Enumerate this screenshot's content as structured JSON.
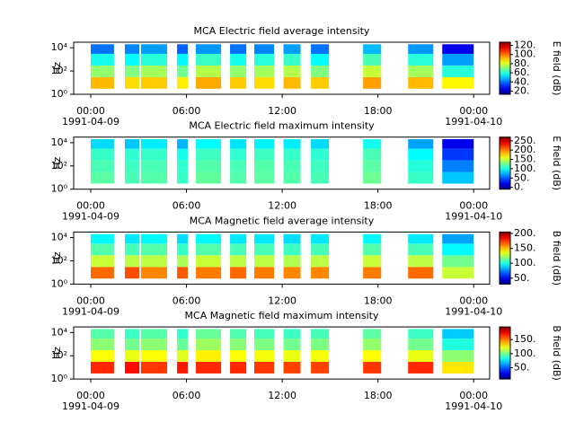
{
  "chart_data": [
    {
      "type": "heatmap",
      "title": "MCA  Electric field average intensity",
      "ylabel": "Hz",
      "colormap": "jet",
      "x_segments": [
        [
          0,
          1.46
        ],
        [
          2.14,
          3.04
        ],
        [
          3.15,
          4.79
        ],
        [
          5.41,
          6.08
        ],
        [
          6.59,
          8.17
        ],
        [
          8.73,
          9.75
        ],
        [
          10.25,
          11.49
        ],
        [
          12.08,
          13.15
        ],
        [
          13.8,
          14.93
        ],
        [
          17.07,
          18.2
        ],
        [
          19.89,
          21.47
        ],
        [
          22.03,
          24.0
        ]
      ],
      "y_bins": [
        3,
        30,
        300,
        3000,
        20000
      ],
      "values": [
        [
          92,
          88,
          90,
          86,
          94,
          90,
          88,
          92,
          90,
          95,
          92,
          85
        ],
        [
          72,
          70,
          74,
          68,
          76,
          72,
          74,
          76,
          70,
          78,
          74,
          60
        ],
        [
          58,
          56,
          60,
          55,
          62,
          58,
          60,
          62,
          56,
          64,
          60,
          45
        ],
        [
          40,
          42,
          45,
          38,
          44,
          40,
          42,
          45,
          40,
          48,
          44,
          25
        ]
      ],
      "xlim": [
        -1.07,
        25.0
      ],
      "xticks": [
        {
          "value": 0,
          "label": "00:00"
        },
        {
          "value": 6,
          "label": "06:00"
        },
        {
          "value": 12,
          "label": "12:00"
        },
        {
          "value": 18,
          "label": "18:00"
        },
        {
          "value": 24,
          "label": "00:00"
        }
      ],
      "xtick_dates": [
        {
          "value": 0,
          "label": "1991-04-09"
        },
        {
          "value": 24,
          "label": "1991-04-10"
        }
      ],
      "ylim": [
        1,
        30000
      ],
      "yscale": "log",
      "yticks": [
        {
          "value": 1,
          "label": "10⁰"
        },
        {
          "value": 100,
          "label": "10²"
        },
        {
          "value": 10000,
          "label": "10⁴"
        }
      ],
      "clim": [
        13,
        127
      ],
      "cticks": [
        {
          "value": 20,
          "label": "20."
        },
        {
          "value": 40,
          "label": "40."
        },
        {
          "value": 60,
          "label": "60."
        },
        {
          "value": 80,
          "label": "80."
        },
        {
          "value": 100,
          "label": "100."
        },
        {
          "value": 120,
          "label": "120."
        }
      ],
      "clabel": "E field (dB)"
    },
    {
      "type": "heatmap",
      "title": "MCA  Electric field maximum intensity",
      "ylabel": "Hz",
      "colormap": "jet",
      "x_segments": [
        [
          0,
          1.46
        ],
        [
          2.14,
          3.04
        ],
        [
          3.15,
          4.79
        ],
        [
          5.41,
          6.08
        ],
        [
          6.59,
          8.17
        ],
        [
          8.73,
          9.75
        ],
        [
          10.25,
          11.49
        ],
        [
          12.08,
          13.15
        ],
        [
          13.8,
          14.93
        ],
        [
          17.07,
          18.2
        ],
        [
          19.89,
          21.47
        ],
        [
          22.03,
          24.0
        ]
      ],
      "y_bins": [
        3,
        30,
        300,
        3000,
        20000
      ],
      "values": [
        [
          120,
          115,
          118,
          110,
          122,
          118,
          120,
          118,
          115,
          125,
          110,
          80
        ],
        [
          115,
          112,
          115,
          108,
          118,
          115,
          118,
          115,
          112,
          120,
          105,
          60
        ],
        [
          110,
          108,
          110,
          100,
          112,
          108,
          112,
          110,
          108,
          115,
          95,
          40
        ],
        [
          85,
          80,
          90,
          75,
          95,
          88,
          92,
          90,
          85,
          100,
          70,
          20
        ]
      ],
      "xlim": [
        -1.07,
        25.0
      ],
      "xticks": [
        {
          "value": 0,
          "label": "00:00"
        },
        {
          "value": 6,
          "label": "06:00"
        },
        {
          "value": 12,
          "label": "12:00"
        },
        {
          "value": 18,
          "label": "18:00"
        },
        {
          "value": 24,
          "label": "00:00"
        }
      ],
      "xtick_dates": [
        {
          "value": 0,
          "label": "1991-04-09"
        },
        {
          "value": 24,
          "label": "1991-04-10"
        }
      ],
      "ylim": [
        1,
        30000
      ],
      "yscale": "log",
      "yticks": [
        {
          "value": 1,
          "label": "10⁰"
        },
        {
          "value": 100,
          "label": "10²"
        },
        {
          "value": 10000,
          "label": "10⁴"
        }
      ],
      "clim": [
        -10,
        270
      ],
      "cticks": [
        {
          "value": 0,
          "label": "0."
        },
        {
          "value": 50,
          "label": "50."
        },
        {
          "value": 100,
          "label": "100."
        },
        {
          "value": 150,
          "label": "150."
        },
        {
          "value": 200,
          "label": "200."
        },
        {
          "value": 250,
          "label": "250."
        }
      ],
      "clabel": "E field (dB)"
    },
    {
      "type": "heatmap",
      "title": "MCA  Magnetic field average intensity",
      "ylabel": "Hz",
      "colormap": "jet",
      "x_segments": [
        [
          0,
          1.46
        ],
        [
          2.14,
          3.04
        ],
        [
          3.15,
          4.79
        ],
        [
          5.41,
          6.08
        ],
        [
          6.59,
          8.17
        ],
        [
          8.73,
          9.75
        ],
        [
          10.25,
          11.49
        ],
        [
          12.08,
          13.15
        ],
        [
          13.8,
          14.93
        ],
        [
          17.07,
          18.2
        ],
        [
          19.89,
          21.47
        ],
        [
          22.03,
          24.0
        ]
      ],
      "y_bins": [
        3,
        30,
        300,
        3000,
        20000
      ],
      "values": [
        [
          165,
          170,
          160,
          168,
          162,
          165,
          162,
          160,
          160,
          162,
          165,
          130
        ],
        [
          130,
          128,
          128,
          125,
          130,
          128,
          128,
          126,
          128,
          130,
          128,
          115
        ],
        [
          110,
          108,
          110,
          105,
          110,
          108,
          108,
          106,
          108,
          110,
          108,
          95
        ],
        [
          95,
          92,
          95,
          90,
          95,
          92,
          92,
          90,
          92,
          95,
          92,
          80
        ]
      ],
      "xlim": [
        -1.07,
        25.0
      ],
      "xticks": [
        {
          "value": 0,
          "label": "00:00"
        },
        {
          "value": 6,
          "label": "06:00"
        },
        {
          "value": 12,
          "label": "12:00"
        },
        {
          "value": 18,
          "label": "18:00"
        },
        {
          "value": 24,
          "label": "00:00"
        }
      ],
      "xtick_dates": [
        {
          "value": 0,
          "label": "1991-04-09"
        },
        {
          "value": 24,
          "label": "1991-04-10"
        }
      ],
      "ylim": [
        1,
        30000
      ],
      "yscale": "log",
      "yticks": [
        {
          "value": 1,
          "label": "10⁰"
        },
        {
          "value": 100,
          "label": "10²"
        },
        {
          "value": 10000,
          "label": "10⁴"
        }
      ],
      "clim": [
        30,
        205
      ],
      "cticks": [
        {
          "value": 50,
          "label": "50."
        },
        {
          "value": 100,
          "label": "100."
        },
        {
          "value": 150,
          "label": "150."
        },
        {
          "value": 200,
          "label": "200."
        }
      ],
      "clabel": "B field (dB)"
    },
    {
      "type": "heatmap",
      "title": "MCA  Magnetic field maximum intensity",
      "ylabel": "Hz",
      "colormap": "jet",
      "x_segments": [
        [
          0,
          1.46
        ],
        [
          2.14,
          3.04
        ],
        [
          3.15,
          4.79
        ],
        [
          5.41,
          6.08
        ],
        [
          6.59,
          8.17
        ],
        [
          8.73,
          9.75
        ],
        [
          10.25,
          11.49
        ],
        [
          12.08,
          13.15
        ],
        [
          13.8,
          14.93
        ],
        [
          17.07,
          18.2
        ],
        [
          19.89,
          21.47
        ],
        [
          22.03,
          24.0
        ]
      ],
      "y_bins": [
        3,
        30,
        300,
        3000,
        20000
      ],
      "values": [
        [
          165,
          170,
          162,
          168,
          165,
          165,
          162,
          160,
          160,
          162,
          165,
          130
        ],
        [
          125,
          122,
          125,
          120,
          128,
          125,
          124,
          122,
          124,
          126,
          122,
          105
        ],
        [
          105,
          100,
          105,
          98,
          108,
          104,
          102,
          100,
          102,
          106,
          100,
          85
        ],
        [
          95,
          90,
          95,
          88,
          98,
          94,
          92,
          90,
          92,
          96,
          90,
          70
        ]
      ],
      "xlim": [
        -1.07,
        25.0
      ],
      "xticks": [
        {
          "value": 0,
          "label": "00:00"
        },
        {
          "value": 6,
          "label": "06:00"
        },
        {
          "value": 12,
          "label": "12:00"
        },
        {
          "value": 18,
          "label": "18:00"
        },
        {
          "value": 24,
          "label": "00:00"
        }
      ],
      "xtick_dates": [
        {
          "value": 0,
          "label": "1991-04-09"
        },
        {
          "value": 24,
          "label": "1991-04-10"
        }
      ],
      "ylim": [
        1,
        30000
      ],
      "yscale": "log",
      "yticks": [
        {
          "value": 1,
          "label": "10⁰"
        },
        {
          "value": 100,
          "label": "10²"
        },
        {
          "value": 10000,
          "label": "10⁴"
        }
      ],
      "clim": [
        10,
        195
      ],
      "cticks": [
        {
          "value": 50,
          "label": "50."
        },
        {
          "value": 100,
          "label": "100."
        },
        {
          "value": 150,
          "label": "150."
        }
      ],
      "clabel": "B field (dB)"
    }
  ]
}
